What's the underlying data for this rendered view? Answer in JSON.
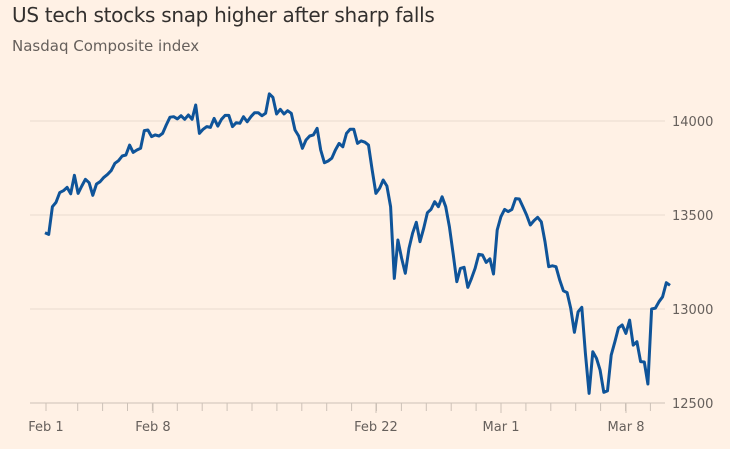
{
  "chart_data": {
    "type": "line",
    "title": "US tech stocks snap higher after sharp falls",
    "subtitle": "Nasdaq Composite index",
    "xlabel": "",
    "ylabel": "",
    "x_tick_labels": [
      "Feb 1",
      "Feb 8",
      "Feb 22",
      "Mar 1",
      "Mar 8"
    ],
    "y_ticks": [
      12500,
      13000,
      13500,
      14000
    ],
    "y_tick_labels": [
      "12500",
      "13000",
      "13500",
      "14000"
    ],
    "ylim": [
      12500,
      14150
    ],
    "x_range": [
      "Feb 1",
      "Mar 9"
    ],
    "grid": true,
    "y_axis_side": "right",
    "colors": {
      "line": "#0f5499",
      "background": "#fff1e5",
      "grid": "#e9dccf",
      "axis": "#ccc1b7"
    },
    "series": [
      {
        "values": [
          13406,
          13397,
          13544,
          13567,
          13619,
          13629,
          13647,
          13613,
          13711,
          13615,
          13654,
          13690,
          13672,
          13605,
          13665,
          13677,
          13700,
          13716,
          13736,
          13775,
          13789,
          13814,
          13819,
          13872,
          13833,
          13846,
          13855,
          13949,
          13952,
          13917,
          13926,
          13920,
          13934,
          13979,
          14020,
          14023,
          14011,
          14028,
          14009,
          14032,
          14009,
          14085,
          13934,
          13956,
          13970,
          13966,
          14014,
          13973,
          14009,
          14030,
          14030,
          13970,
          13991,
          13988,
          14023,
          13996,
          14023,
          14044,
          14044,
          14028,
          14041,
          14144,
          14126,
          14037,
          14062,
          14037,
          14055,
          14041,
          13952,
          13920,
          13855,
          13899,
          13920,
          13926,
          13961,
          13846,
          13778,
          13787,
          13802,
          13846,
          13881,
          13863,
          13934,
          13956,
          13956,
          13881,
          13894,
          13887,
          13872,
          13739,
          13615,
          13642,
          13686,
          13654,
          13544,
          13163,
          13367,
          13270,
          13190,
          13323,
          13403,
          13461,
          13358,
          13429,
          13512,
          13530,
          13571,
          13544,
          13597,
          13544,
          13438,
          13296,
          13145,
          13216,
          13222,
          13115,
          13163,
          13216,
          13291,
          13287,
          13248,
          13267,
          13186,
          13420,
          13491,
          13530,
          13518,
          13530,
          13587,
          13585,
          13544,
          13500,
          13447,
          13470,
          13488,
          13464,
          13358,
          13225,
          13230,
          13225,
          13154,
          13097,
          13087,
          13004,
          12876,
          12985,
          13009,
          12764,
          12551,
          12773,
          12738,
          12675,
          12557,
          12565,
          12755,
          12826,
          12900,
          12915,
          12870,
          12941,
          12808,
          12826,
          12720,
          12718,
          12601,
          13000,
          13004,
          13039,
          13065,
          13140,
          13126
        ]
      }
    ]
  }
}
